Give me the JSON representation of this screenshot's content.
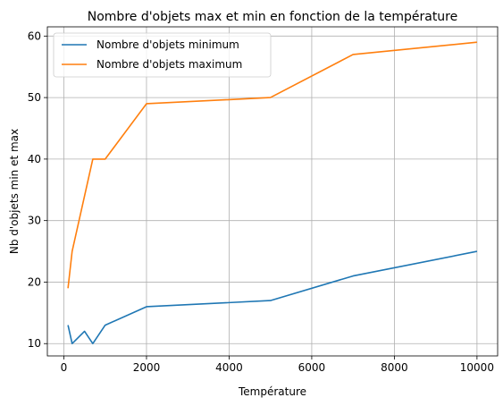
{
  "chart_data": {
    "type": "line",
    "title": "Nombre d'objets max et min en fonction de la température",
    "xlabel": "Température",
    "ylabel": "Nb d'objets min et max",
    "xlim": [
      -400,
      10500
    ],
    "ylim": [
      8,
      61.5
    ],
    "xticks": [
      0,
      2000,
      4000,
      6000,
      8000,
      10000
    ],
    "yticks": [
      10,
      20,
      30,
      40,
      50,
      60
    ],
    "grid": true,
    "legend_position": "top-left",
    "series": [
      {
        "name": "Nombre d'objets minimum",
        "color": "#1f77b4",
        "x": [
          100,
          200,
          500,
          700,
          1000,
          2000,
          5000,
          7000,
          10000
        ],
        "y": [
          13,
          10,
          12,
          10,
          13,
          16,
          17,
          21,
          25
        ]
      },
      {
        "name": "Nombre d'objets maximum",
        "color": "#ff7f0e",
        "x": [
          100,
          200,
          500,
          700,
          1000,
          2000,
          5000,
          7000,
          10000
        ],
        "y": [
          19,
          25,
          34,
          40,
          40,
          49,
          50,
          57,
          59
        ]
      }
    ]
  }
}
